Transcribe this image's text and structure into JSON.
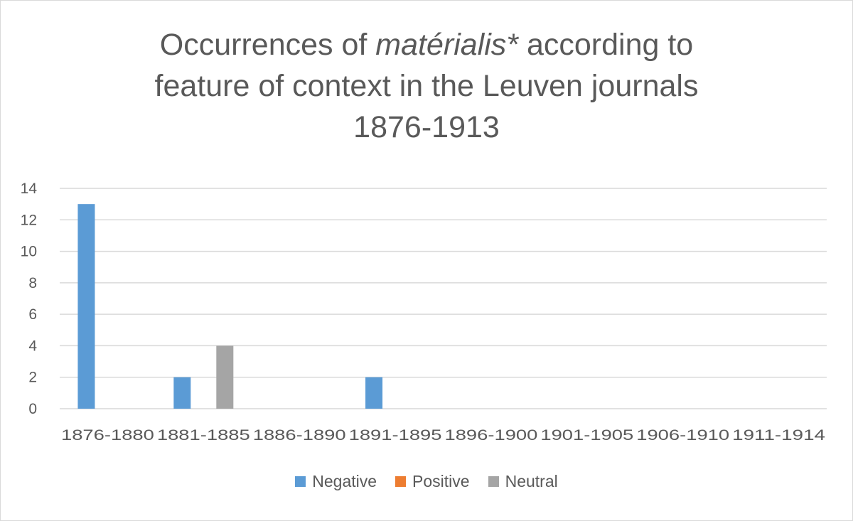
{
  "chart_data": {
    "type": "bar",
    "title_parts": {
      "line1_pre": "Occurrences of ",
      "line1_em": "matérialis*",
      "line1_post": " according to",
      "line2": "feature of context in the Leuven journals",
      "line3": "1876-1913"
    },
    "categories": [
      "1876-1880",
      "1881-1885",
      "1886-1890",
      "1891-1895",
      "1896-1900",
      "1901-1905",
      "1906-1910",
      "1911-1914"
    ],
    "series": [
      {
        "name": "Negative",
        "color": "#5b9bd5",
        "values": [
          13,
          2,
          0,
          2,
          0,
          0,
          0,
          0
        ]
      },
      {
        "name": "Positive",
        "color": "#ed7d31",
        "values": [
          0,
          0,
          0,
          0,
          0,
          0,
          0,
          0
        ]
      },
      {
        "name": "Neutral",
        "color": "#a5a5a5",
        "values": [
          0,
          4,
          0,
          0,
          0,
          0,
          0,
          0
        ]
      }
    ],
    "yticks": [
      "0",
      "2",
      "4",
      "6",
      "8",
      "10",
      "12",
      "14"
    ],
    "ylim": [
      0,
      14
    ],
    "grid": true,
    "legend_position": "bottom"
  }
}
